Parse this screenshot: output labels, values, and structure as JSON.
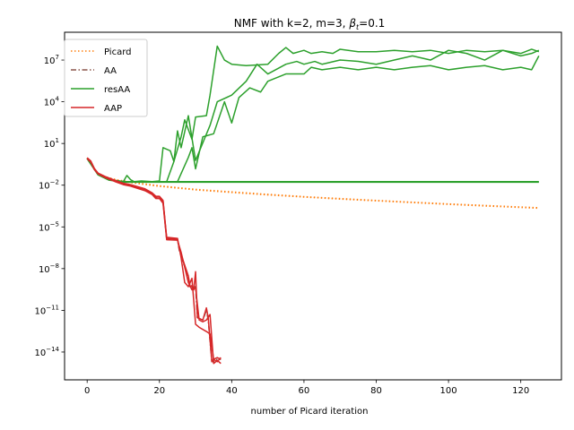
{
  "chart_data": {
    "type": "line",
    "title": "NMF with k=2, m=3,  βt=0.1",
    "title_parts": {
      "main": "NMF with k=2, m=3,  ",
      "beta": "β",
      "beta_sub": "t",
      "beta_value": "=0.1"
    },
    "xlabel": "number of Picard iteration",
    "ylabel": "",
    "yscale": "log",
    "xlim": [
      -6.25,
      131.25
    ],
    "ylim": [
      1e-16,
      1000000000.0
    ],
    "xticks": [
      0,
      20,
      40,
      60,
      80,
      100,
      120
    ],
    "xtick_labels": [
      "0",
      "20",
      "40",
      "60",
      "80",
      "100",
      "120"
    ],
    "yticks": [
      1e-14,
      1e-11,
      1e-08,
      1e-05,
      0.01,
      10,
      10000.0,
      10000000.0
    ],
    "ytick_labels": [
      {
        "base": "10",
        "exp": "−14"
      },
      {
        "base": "10",
        "exp": "−11"
      },
      {
        "base": "10",
        "exp": "−8"
      },
      {
        "base": "10",
        "exp": "−5"
      },
      {
        "base": "10",
        "exp": "−2"
      },
      {
        "base": "10",
        "exp": "1"
      },
      {
        "base": "10",
        "exp": "4"
      },
      {
        "base": "10",
        "exp": "7"
      }
    ],
    "grid": false,
    "legend_position": "upper-left",
    "legend": [
      {
        "name": "Picard",
        "color": "#ff7f0e",
        "dash": "dotted"
      },
      {
        "name": "AA",
        "color": "#8c564b",
        "dash": "dashdot"
      },
      {
        "name": "resAA",
        "color": "#2ca02c",
        "dash": "solid"
      },
      {
        "name": "AAP",
        "color": "#d62728",
        "dash": "solid"
      }
    ],
    "series": [
      {
        "name": "Picard",
        "color": "#ff7f0e",
        "dash": "dotted",
        "x": [
          0,
          1,
          2,
          3,
          5,
          8,
          12,
          20,
          30,
          40,
          50,
          60,
          70,
          80,
          90,
          100,
          110,
          120,
          125
        ],
        "y": [
          0.9,
          0.5,
          0.15,
          0.07,
          0.04,
          0.025,
          0.017,
          0.009,
          0.005,
          0.0033,
          0.0022,
          0.0015,
          0.0011,
          0.0008,
          0.0006,
          0.00045,
          0.00035,
          0.00027,
          0.00024
        ]
      },
      {
        "name": "Picard",
        "color": "#ff7f0e",
        "dash": "dotted",
        "x": [
          0,
          1,
          2,
          3,
          5,
          8,
          12,
          20,
          30,
          40,
          50,
          60,
          70,
          80,
          90,
          100,
          110,
          120,
          125
        ],
        "y": [
          0.85,
          0.45,
          0.14,
          0.065,
          0.037,
          0.023,
          0.0155,
          0.0083,
          0.0046,
          0.003,
          0.002,
          0.0014,
          0.001,
          0.00075,
          0.00056,
          0.00042,
          0.00032,
          0.00025,
          0.00022
        ]
      },
      {
        "name": "AA",
        "color": "#8c564b",
        "dash": "dashdot",
        "x": [
          0,
          1,
          2,
          3,
          5,
          8,
          10,
          12,
          16,
          18,
          19,
          20,
          21,
          22,
          25,
          25.5,
          28,
          28.5,
          30,
          30.5,
          32,
          33,
          33.5,
          34.5,
          35,
          36,
          37
        ],
        "y": [
          0.85,
          0.45,
          0.14,
          0.065,
          0.037,
          0.018,
          0.012,
          0.009,
          0.0045,
          0.0022,
          0.0012,
          0.0012,
          0.0006,
          1.4e-06,
          1.2e-06,
          2e-07,
          2e-09,
          4e-10,
          5e-10,
          3e-12,
          2e-12,
          1e-11,
          2e-12,
          2e-15,
          2e-15,
          3e-15,
          3e-15
        ]
      },
      {
        "name": "resAA",
        "color": "#2ca02c",
        "dash": "solid",
        "x": [
          0,
          3,
          6,
          10,
          15,
          20,
          40,
          60,
          80,
          100,
          120,
          125
        ],
        "y": [
          0.85,
          0.06,
          0.025,
          0.018,
          0.018,
          0.018,
          0.018,
          0.018,
          0.018,
          0.018,
          0.018,
          0.018
        ]
      },
      {
        "name": "resAA",
        "color": "#2ca02c",
        "dash": "solid",
        "x": [
          0,
          3,
          6,
          10,
          15,
          20,
          40,
          60,
          80,
          100,
          120,
          125
        ],
        "y": [
          0.8,
          0.055,
          0.023,
          0.0165,
          0.0165,
          0.0165,
          0.0165,
          0.0165,
          0.0165,
          0.0165,
          0.0165,
          0.0165
        ]
      },
      {
        "name": "resAA",
        "color": "#2ca02c",
        "dash": "solid",
        "x": [
          0,
          3,
          6,
          10,
          11,
          12,
          13,
          15,
          18,
          20,
          21,
          23,
          24,
          26,
          27,
          29,
          30,
          33,
          34,
          36,
          38,
          40,
          44,
          50,
          53,
          55,
          57,
          60,
          62,
          65,
          68,
          70,
          75,
          80,
          85,
          90,
          95,
          100,
          105,
          110,
          115,
          120,
          123,
          125
        ],
        "y": [
          0.85,
          0.06,
          0.025,
          0.018,
          0.05,
          0.025,
          0.018,
          0.02,
          0.018,
          0.02,
          5,
          3,
          0.5,
          30,
          500,
          20,
          800,
          1000,
          30000,
          100000000.0,
          10000000.0,
          5000000.0,
          4000000.0,
          5000000.0,
          30000000.0,
          80000000.0,
          30000000.0,
          50000000.0,
          30000000.0,
          40000000.0,
          30000000.0,
          60000000.0,
          40000000.0,
          40000000.0,
          50000000.0,
          40000000.0,
          50000000.0,
          30000000.0,
          50000000.0,
          40000000.0,
          50000000.0,
          30000000.0,
          60000000.0,
          40000000.0
        ]
      },
      {
        "name": "resAA",
        "color": "#2ca02c",
        "dash": "solid",
        "x": [
          0,
          3,
          6,
          10,
          15,
          22,
          24,
          25,
          26,
          28,
          30,
          34,
          36,
          40,
          44,
          47,
          50,
          55,
          58,
          60,
          63,
          65,
          70,
          75,
          80,
          85,
          90,
          95,
          100,
          105,
          110,
          115,
          120,
          123,
          125
        ],
        "y": [
          0.85,
          0.06,
          0.025,
          0.018,
          0.018,
          0.018,
          0.5,
          80,
          5,
          1000,
          0.6,
          200,
          10000,
          30000,
          300000,
          5000000.0,
          1000000.0,
          5000000.0,
          8000000.0,
          5000000.0,
          8000000.0,
          5000000.0,
          10000000.0,
          8000000.0,
          5000000.0,
          10000000.0,
          20000000.0,
          10000000.0,
          50000000.0,
          30000000.0,
          10000000.0,
          50000000.0,
          20000000.0,
          30000000.0,
          50000000.0
        ]
      },
      {
        "name": "resAA",
        "color": "#2ca02c",
        "dash": "solid",
        "x": [
          0,
          3,
          6,
          10,
          15,
          20,
          25,
          28,
          29,
          30,
          32,
          35,
          38,
          40,
          42,
          45,
          48,
          50,
          55,
          60,
          62,
          65,
          70,
          75,
          80,
          85,
          90,
          95,
          100,
          105,
          110,
          115,
          120,
          123,
          125
        ],
        "y": [
          0.85,
          0.06,
          0.025,
          0.018,
          0.018,
          0.018,
          0.018,
          1,
          5,
          0.15,
          30,
          50,
          10000,
          300,
          20000,
          100000,
          50000,
          300000,
          1000000.0,
          1000000.0,
          3000000.0,
          2000000.0,
          3000000.0,
          2000000.0,
          3000000.0,
          2000000.0,
          3000000.0,
          4000000.0,
          2000000.0,
          3000000.0,
          4000000.0,
          2000000.0,
          3000000.0,
          2000000.0,
          20000000.0
        ]
      },
      {
        "name": "AAP",
        "color": "#d62728",
        "dash": "solid",
        "x": [
          0,
          1,
          2,
          3,
          5,
          8,
          10,
          12,
          16,
          18,
          19,
          20,
          21,
          22,
          25,
          25.5,
          28,
          28.5,
          29,
          29.5,
          30,
          30.5,
          32,
          33,
          33.5,
          34.5,
          35,
          36,
          37
        ],
        "y": [
          0.9,
          0.5,
          0.15,
          0.07,
          0.04,
          0.02,
          0.013,
          0.01,
          0.005,
          0.0025,
          0.0014,
          0.0014,
          0.0007,
          1.5e-06,
          1.3e-06,
          2.5e-07,
          3e-09,
          5e-10,
          6e-10,
          3e-10,
          6e-09,
          3e-12,
          2e-12,
          1.5e-11,
          3e-12,
          2e-15,
          3e-15,
          2e-15,
          4e-15
        ]
      },
      {
        "name": "AAP",
        "color": "#d62728",
        "dash": "solid",
        "x": [
          0,
          1,
          2,
          3,
          5,
          8,
          10,
          12,
          16,
          18,
          19,
          20,
          21,
          22,
          25,
          26,
          28,
          29,
          30,
          31,
          32,
          33,
          34,
          35,
          36,
          37
        ],
        "y": [
          0.8,
          0.45,
          0.13,
          0.065,
          0.035,
          0.017,
          0.011,
          0.0085,
          0.004,
          0.0021,
          0.0011,
          0.0011,
          0.0005,
          1.2e-06,
          1.1e-06,
          1.5e-07,
          1e-09,
          3e-10,
          4e-10,
          2e-12,
          1.5e-12,
          2e-12,
          5e-12,
          1.5e-15,
          2.5e-15,
          1.5e-15
        ]
      },
      {
        "name": "AAP",
        "color": "#d62728",
        "dash": "solid",
        "x": [
          0,
          1,
          2,
          3,
          5,
          8,
          10,
          12,
          16,
          18,
          19,
          20,
          21,
          22,
          25,
          26,
          27,
          28,
          29,
          30,
          31,
          33,
          34,
          35,
          36,
          37
        ],
        "y": [
          0.95,
          0.55,
          0.16,
          0.075,
          0.042,
          0.021,
          0.014,
          0.011,
          0.0055,
          0.0028,
          0.0016,
          0.0016,
          0.0008,
          1.8e-06,
          1.5e-06,
          6e-08,
          1e-09,
          5e-10,
          2e-09,
          1e-12,
          6e-13,
          3e-13,
          2e-13,
          3e-15,
          4e-15,
          3e-15
        ]
      }
    ]
  }
}
